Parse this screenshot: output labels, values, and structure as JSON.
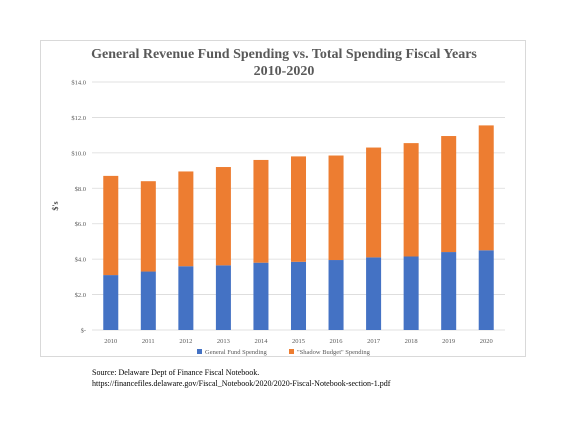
{
  "chart_data": {
    "type": "bar",
    "stacked": true,
    "title_lines": [
      "General Revenue Fund Spending vs. Total Spending Fiscal Years",
      "2010-2020"
    ],
    "ylabel": "$'s",
    "xlabel": "",
    "ylim": [
      0,
      14
    ],
    "yticks": [
      0,
      2,
      4,
      6,
      8,
      10,
      12,
      14
    ],
    "ytick_labels": [
      "$-",
      "$2.0",
      "$4.0",
      "$6.0",
      "$8.0",
      "$10.0",
      "$12.0",
      "$14.0"
    ],
    "grid": true,
    "legend_position": "bottom",
    "categories": [
      "2010",
      "2011",
      "2012",
      "2013",
      "2014",
      "2015",
      "2016",
      "2017",
      "2018",
      "2019",
      "2020"
    ],
    "series": [
      {
        "name": "General Fund Spending",
        "color": "#4472c4",
        "values": [
          3.1,
          3.3,
          3.6,
          3.65,
          3.8,
          3.85,
          3.95,
          4.1,
          4.15,
          4.4,
          4.5
        ]
      },
      {
        "name": "\"Shadow Budget\" Spending",
        "color": "#ed7d31",
        "values": [
          5.6,
          5.1,
          5.35,
          5.55,
          5.8,
          5.95,
          5.9,
          6.2,
          6.4,
          6.55,
          7.05
        ]
      }
    ]
  },
  "source": {
    "line1": "Source: Delaware Dept of Finance Fiscal Notebook.",
    "line2": "https://financefiles.delaware.gov/Fiscal_Notebook/2020/2020-Fiscal-Notebook-section-1.pdf"
  }
}
